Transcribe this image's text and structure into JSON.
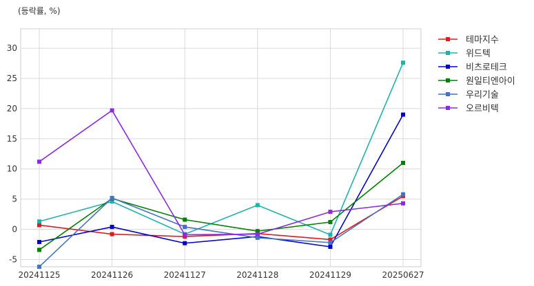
{
  "chart_data": {
    "type": "line",
    "title": "",
    "unit_label": "(등락률, %)",
    "xlabel": "",
    "ylabel": "",
    "categories": [
      "20241125",
      "20241126",
      "20241127",
      "20241128",
      "20241129",
      "20250627"
    ],
    "ylim": [
      -6.2,
      33.2
    ],
    "yticks": [
      -5,
      0,
      5,
      10,
      15,
      20,
      25,
      30
    ],
    "grid": true,
    "legend_position": "outside-right-top",
    "series": [
      {
        "name": "테마지수",
        "color": "#e31a1c",
        "values": [
          0.7,
          -0.8,
          -1.2,
          -0.7,
          -1.7,
          5.5
        ]
      },
      {
        "name": "위드텍",
        "color": "#20b2aa",
        "values": [
          1.3,
          4.6,
          -0.8,
          4.0,
          -0.9,
          27.6
        ]
      },
      {
        "name": "비츠로테크",
        "color": "#0000cd",
        "values": [
          -2.1,
          0.4,
          -2.3,
          -1.2,
          -2.9,
          19.0
        ]
      },
      {
        "name": "원일티엔아이",
        "color": "#008000",
        "values": [
          -3.4,
          5.1,
          1.6,
          -0.3,
          1.2,
          11.0
        ]
      },
      {
        "name": "우리기술",
        "color": "#4472c4",
        "values": [
          -6.2,
          5.2,
          0.4,
          -1.4,
          -2.2,
          5.8
        ]
      },
      {
        "name": "오르비텍",
        "color": "#8a2be2",
        "values": [
          11.2,
          19.7,
          -0.9,
          -0.8,
          2.9,
          4.3
        ]
      }
    ]
  }
}
